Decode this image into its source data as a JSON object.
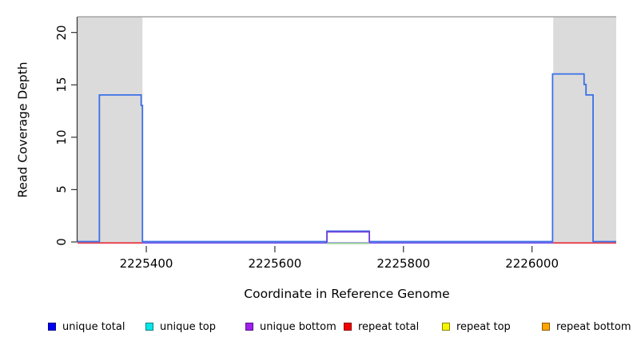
{
  "chart_data": {
    "type": "line",
    "title": "",
    "xlabel": "Coordinate in Reference Genome",
    "ylabel": "Read Coverage Depth",
    "xlim": [
      2225293,
      2226131
    ],
    "ylim": [
      0,
      21.5
    ],
    "x_ticks": [
      2225400,
      2225600,
      2225800,
      2226000
    ],
    "y_ticks": [
      0,
      5,
      10,
      15,
      20
    ],
    "grid": false,
    "legend_position": "bottom",
    "coverage_limit_line": 21.5,
    "shaded_regions": [
      {
        "name": "repeat-region-left",
        "x0": 2225293,
        "x1": 2225394
      },
      {
        "name": "repeat-region-right",
        "x0": 2226033,
        "x1": 2226131
      }
    ],
    "series": [
      {
        "name": "unique total",
        "color": "#3A6FE8",
        "points": [
          [
            2225293,
            0
          ],
          [
            2225327,
            0
          ],
          [
            2225327,
            14
          ],
          [
            2225392,
            14
          ],
          [
            2225392,
            13
          ],
          [
            2225394,
            13
          ],
          [
            2225394,
            0
          ],
          [
            2225681,
            0
          ],
          [
            2225681,
            1
          ],
          [
            2225747,
            1
          ],
          [
            2225747,
            0
          ],
          [
            2226032,
            0
          ],
          [
            2226032,
            16
          ],
          [
            2226081,
            16
          ],
          [
            2226081,
            15
          ],
          [
            2226084,
            15
          ],
          [
            2226084,
            14
          ],
          [
            2226095,
            14
          ],
          [
            2226095,
            0
          ],
          [
            2226131,
            0
          ]
        ]
      },
      {
        "name": "unique top",
        "color": "#00E5E5",
        "points": [
          [
            2225293,
            0
          ],
          [
            2226131,
            0
          ]
        ]
      },
      {
        "name": "unique bottom",
        "color": "#7A3BD8",
        "points": [
          [
            2225293,
            0
          ],
          [
            2225681,
            0
          ],
          [
            2225681,
            1
          ],
          [
            2225747,
            1
          ],
          [
            2225747,
            0
          ],
          [
            2226131,
            0
          ]
        ]
      },
      {
        "name": "repeat total",
        "color": "#F04A4A",
        "points": [
          [
            2225293,
            0
          ],
          [
            2226131,
            0
          ]
        ]
      },
      {
        "name": "repeat top",
        "color": "#E8E800",
        "points": [
          [
            2225293,
            0
          ],
          [
            2226131,
            0
          ]
        ]
      },
      {
        "name": "repeat bottom",
        "color": "#F0A030",
        "points": [
          [
            2225293,
            0
          ],
          [
            2226131,
            0
          ]
        ]
      }
    ],
    "legend": [
      {
        "label": "unique total",
        "color": "#0000F5"
      },
      {
        "label": "unique top",
        "color": "#00E8E8"
      },
      {
        "label": "unique bottom",
        "color": "#A020F0"
      },
      {
        "label": "repeat total",
        "color": "#F50000"
      },
      {
        "label": "repeat top",
        "color": "#F5F500"
      },
      {
        "label": "repeat bottom",
        "color": "#FFA500"
      }
    ],
    "visual_colors": {
      "shade_fill": "#DBDBDB",
      "limit_line": "#A6A6A6",
      "baseline_violet": "#7D5BEA",
      "baseline_red": "#F04A4A",
      "baseline_green": "#9FD69C",
      "axis": "#333333"
    }
  }
}
